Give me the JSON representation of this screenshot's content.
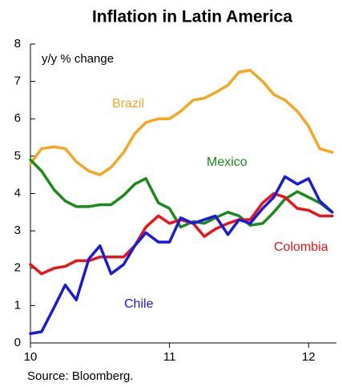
{
  "chart_data": {
    "type": "line",
    "title": "Inflation in Latin America",
    "ylabel": "y/y % change",
    "source": "Source: Bloomberg.",
    "x": [
      10,
      10.08,
      10.17,
      10.25,
      10.33,
      10.42,
      10.5,
      10.58,
      10.67,
      10.75,
      10.83,
      10.92,
      11,
      11.08,
      11.17,
      11.25,
      11.33,
      11.42,
      11.5,
      11.58,
      11.67,
      11.75,
      11.83,
      11.92,
      12,
      12.08,
      12.17
    ],
    "series": [
      {
        "name": "Brazil",
        "color": "#f5a623",
        "values": [
          4.8,
          5.2,
          5.25,
          5.2,
          4.85,
          4.6,
          4.5,
          4.7,
          5.1,
          5.6,
          5.9,
          6.0,
          6.0,
          6.2,
          6.5,
          6.55,
          6.7,
          6.9,
          7.25,
          7.3,
          7.0,
          6.65,
          6.5,
          6.2,
          5.8,
          5.2,
          5.1
        ]
      },
      {
        "name": "Mexico",
        "color": "#1a8a1a",
        "values": [
          4.9,
          4.6,
          4.1,
          3.8,
          3.65,
          3.65,
          3.7,
          3.7,
          3.95,
          4.25,
          4.4,
          3.75,
          3.6,
          3.1,
          3.25,
          3.2,
          3.35,
          3.5,
          3.4,
          3.15,
          3.2,
          3.5,
          3.85,
          4.05,
          3.9,
          3.75,
          3.5
        ]
      },
      {
        "name": "Colombia",
        "color": "#e8141a",
        "values": [
          2.1,
          1.85,
          2.0,
          2.05,
          2.2,
          2.2,
          2.3,
          2.3,
          2.3,
          2.6,
          3.1,
          3.4,
          3.2,
          3.3,
          3.2,
          2.85,
          3.05,
          3.2,
          3.3,
          3.3,
          3.75,
          4.0,
          3.9,
          3.6,
          3.55,
          3.4,
          3.4
        ]
      },
      {
        "name": "Chile",
        "color": "#1a1adc",
        "values": [
          0.25,
          0.3,
          0.95,
          1.55,
          1.15,
          2.25,
          2.6,
          1.85,
          2.1,
          2.6,
          2.95,
          2.7,
          2.7,
          3.35,
          3.2,
          3.3,
          3.4,
          2.9,
          3.3,
          3.2,
          3.6,
          3.9,
          4.45,
          4.25,
          4.4,
          3.8,
          3.5
        ]
      }
    ],
    "xlim": [
      10,
      12.2
    ],
    "xticks": [
      10,
      11,
      12
    ],
    "ylim": [
      0,
      8
    ],
    "yticks": [
      0,
      1,
      2,
      3,
      4,
      5,
      6,
      7,
      8
    ],
    "grid": false
  }
}
